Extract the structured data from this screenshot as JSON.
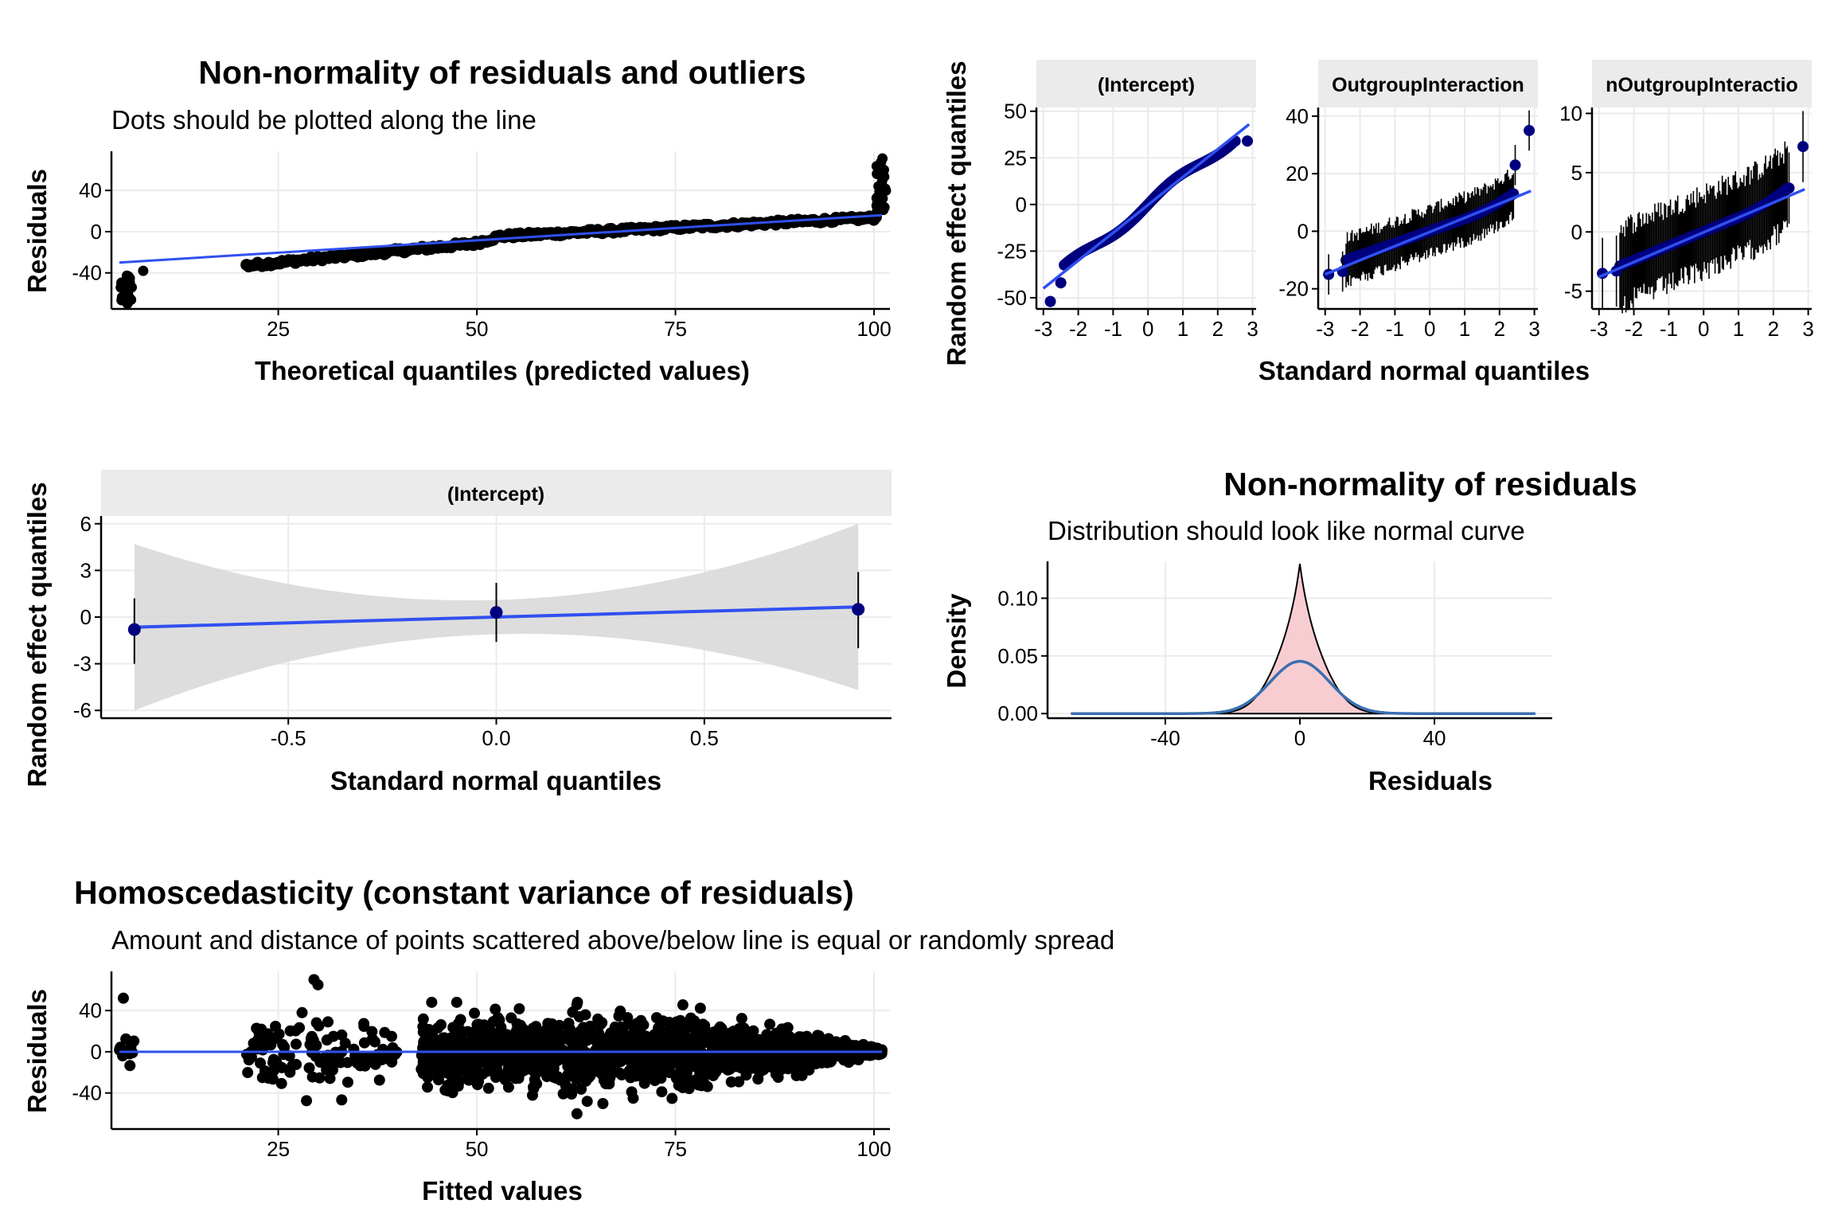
{
  "colors": {
    "grid": "#ebebeb",
    "strip": "#ebebeb",
    "points": "#000000",
    "blue_points": "#00007f",
    "fit_line": "#3050f0",
    "normal_curve": "#3a6fb0",
    "density_fill": "#f8cdd2",
    "ci_band": "#d9d9d9"
  },
  "chart_data": [
    {
      "id": "qq-residuals",
      "type": "scatter",
      "title": "Non-normality of residuals and outliers",
      "subtitle": "Dots should be plotted along the line",
      "xlabel": "Theoretical quantiles (predicted values)",
      "ylabel": "Residuals",
      "xlim": [
        4,
        102
      ],
      "ylim": [
        -75,
        78
      ],
      "xticks": [
        25,
        50,
        75,
        100
      ],
      "yticks": [
        -40,
        0,
        40
      ],
      "grid": true,
      "line": {
        "x": [
          5,
          101
        ],
        "y": [
          -30,
          16
        ]
      },
      "points_summary": "dense curve of ~3000 residual points, left tail near -40 to -70, right tail up to 72"
    },
    {
      "id": "re-qq-facets",
      "type": "scatter",
      "xlabel": "Standard normal quantiles",
      "ylabel": "Random effect quantiles",
      "facets": [
        {
          "strip": "(Intercept)",
          "xlim": [
            -3.2,
            3.1
          ],
          "ylim": [
            -56,
            52
          ],
          "xticks": [
            -3,
            -2,
            -1,
            0,
            1,
            2,
            3
          ],
          "yticks": [
            -50,
            -25,
            0,
            25,
            50
          ],
          "line": {
            "x": [
              -3,
              2.9
            ],
            "y": [
              -45,
              43
            ]
          }
        },
        {
          "strip": "OutgroupInteraction",
          "xlim": [
            -3.2,
            3.1
          ],
          "ylim": [
            -27,
            43
          ],
          "xticks": [
            -3,
            -2,
            -1,
            0,
            1,
            2,
            3
          ],
          "yticks": [
            -20,
            0,
            20,
            40
          ],
          "line": {
            "x": [
              -3,
              2.9
            ],
            "y": [
              -15,
              14
            ]
          }
        },
        {
          "strip": "nOutgroupInteractio",
          "xlim": [
            -3.2,
            3.1
          ],
          "ylim": [
            -6.5,
            10.5
          ],
          "xticks": [
            -3,
            -2,
            -1,
            0,
            1,
            2,
            3
          ],
          "yticks": [
            -5,
            0,
            5,
            10
          ],
          "line": {
            "x": [
              -3,
              2.9
            ],
            "y": [
              -3.8,
              3.6
            ]
          }
        }
      ]
    },
    {
      "id": "re-qq-single",
      "type": "scatter",
      "strip": "(Intercept)",
      "xlabel": "Standard normal quantiles",
      "ylabel": "Random effect quantiles",
      "xlim": [
        -0.95,
        0.95
      ],
      "ylim": [
        -6.5,
        6.5
      ],
      "xticks": [
        -0.5,
        0.0,
        0.5
      ],
      "xtick_labels": [
        "-0.5",
        "0.0",
        "0.5"
      ],
      "yticks": [
        -6,
        -3,
        0,
        3,
        6
      ],
      "points": [
        {
          "x": -0.87,
          "y": -0.8,
          "lo": -3.0,
          "hi": 1.2
        },
        {
          "x": 0.0,
          "y": 0.3,
          "lo": -1.6,
          "hi": 2.2
        },
        {
          "x": 0.87,
          "y": 0.5,
          "lo": -2.0,
          "hi": 2.9
        }
      ],
      "line": {
        "x": [
          -0.87,
          0.87
        ],
        "y": [
          -0.65,
          0.65
        ]
      },
      "band": {
        "x": [
          -0.87,
          0.0,
          0.87
        ],
        "lo": [
          -6.0,
          -1.1,
          -4.7
        ],
        "hi": [
          4.7,
          1.1,
          6.0
        ]
      }
    },
    {
      "id": "residual-density",
      "type": "area",
      "title": "Non-normality of residuals",
      "subtitle": "Distribution should look like normal curve",
      "xlabel": "Residuals",
      "ylabel": "Density",
      "xlim": [
        -75,
        75
      ],
      "ylim": [
        -0.004,
        0.132
      ],
      "xticks": [
        -40,
        0,
        40
      ],
      "yticks": [
        0.0,
        0.05,
        0.1
      ],
      "ytick_labels": [
        "0.00",
        "0.05",
        "0.10"
      ],
      "density": {
        "peak": 0.127,
        "center": 0
      },
      "normal_curve": {
        "mean": 0,
        "sd": 8.8,
        "range": [
          -68,
          70
        ]
      }
    },
    {
      "id": "homoscedasticity",
      "type": "scatter",
      "title": "Homoscedasticity (constant variance of residuals)",
      "subtitle": "Amount and distance of points scattered above/below line is equal or randomly spread",
      "xlabel": "Fitted values",
      "ylabel": "Residuals",
      "xlim": [
        4,
        102
      ],
      "ylim": [
        -75,
        78
      ],
      "xticks": [
        25,
        50,
        75,
        100
      ],
      "yticks": [
        -40,
        0,
        40
      ],
      "line": {
        "x": [
          5,
          101
        ],
        "y": [
          0,
          0
        ]
      },
      "points_summary": "dense band of residuals around 0, widest between fitted 45 and 75, narrowing toward 100"
    }
  ]
}
